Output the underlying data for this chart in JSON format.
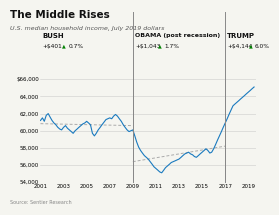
{
  "title": "The Middle Rises",
  "subtitle": "U.S. median household income, July 2019 dollars",
  "source": "Source: Sentier Research",
  "ylim": [
    54000,
    66000
  ],
  "yticks": [
    54000,
    56000,
    58000,
    60000,
    62000,
    64000,
    66000
  ],
  "ytick_labels": [
    "54,000",
    "56,000",
    "58,000",
    "60,000",
    "62,000",
    "64,000",
    "$66,000"
  ],
  "xticks": [
    2001,
    2003,
    2005,
    2007,
    2009,
    2011,
    2013,
    2015,
    2017,
    2019
  ],
  "line_color": "#1a7abf",
  "trend_color": "#aaaaaa",
  "vline_color": "#888888",
  "bg_color": "#f5f5f0",
  "bush_label": "BUSH",
  "bush_stat": "+$401",
  "bush_pct": "0.7%",
  "obama_label": "OBAMA (post recession)",
  "obama_stat": "+$1,043",
  "obama_pct": "1.7%",
  "trump_label": "TRUMP",
  "trump_stat": "+$4,144",
  "trump_pct": "6.0%",
  "bush_vline_x": 2009.0,
  "trump_vline_x": 2017.0,
  "data_x": [
    2001.0,
    2001.17,
    2001.33,
    2001.5,
    2001.67,
    2001.83,
    2002.0,
    2002.17,
    2002.33,
    2002.5,
    2002.67,
    2002.83,
    2003.0,
    2003.17,
    2003.33,
    2003.5,
    2003.67,
    2003.83,
    2004.0,
    2004.17,
    2004.33,
    2004.5,
    2004.67,
    2004.83,
    2005.0,
    2005.17,
    2005.33,
    2005.5,
    2005.67,
    2005.83,
    2006.0,
    2006.17,
    2006.33,
    2006.5,
    2006.67,
    2006.83,
    2007.0,
    2007.17,
    2007.33,
    2007.5,
    2007.67,
    2007.83,
    2008.0,
    2008.17,
    2008.33,
    2008.5,
    2008.67,
    2008.83,
    2009.0,
    2009.17,
    2009.33,
    2009.5,
    2009.67,
    2009.83,
    2010.0,
    2010.17,
    2010.33,
    2010.5,
    2010.67,
    2010.83,
    2011.0,
    2011.17,
    2011.33,
    2011.5,
    2011.67,
    2011.83,
    2012.0,
    2012.17,
    2012.33,
    2012.5,
    2012.67,
    2012.83,
    2013.0,
    2013.17,
    2013.33,
    2013.5,
    2013.67,
    2013.83,
    2014.0,
    2014.17,
    2014.33,
    2014.5,
    2014.67,
    2014.83,
    2015.0,
    2015.17,
    2015.33,
    2015.5,
    2015.67,
    2015.83,
    2016.0,
    2016.17,
    2016.33,
    2016.5,
    2016.67,
    2016.83,
    2017.0,
    2017.17,
    2017.33,
    2017.5,
    2017.67,
    2017.83,
    2018.0,
    2018.17,
    2018.33,
    2018.5,
    2018.67,
    2018.83,
    2019.0,
    2019.17,
    2019.33,
    2019.5
  ],
  "data_y": [
    61200,
    61500,
    61100,
    61800,
    62000,
    61600,
    61200,
    60900,
    60700,
    60400,
    60200,
    60100,
    60400,
    60600,
    60300,
    60100,
    59900,
    59700,
    60000,
    60200,
    60400,
    60600,
    60800,
    60900,
    61100,
    60900,
    60700,
    59700,
    59400,
    59700,
    60100,
    60400,
    60700,
    61000,
    61300,
    61400,
    61500,
    61400,
    61700,
    61900,
    61700,
    61400,
    61100,
    60700,
    60400,
    60100,
    59900,
    60000,
    60100,
    59400,
    58700,
    58100,
    57700,
    57400,
    57100,
    56900,
    56700,
    56400,
    56100,
    55800,
    55600,
    55400,
    55200,
    55100,
    55400,
    55700,
    55900,
    56100,
    56300,
    56400,
    56500,
    56600,
    56700,
    56900,
    57100,
    57300,
    57400,
    57500,
    57300,
    57200,
    57000,
    56900,
    57100,
    57300,
    57500,
    57700,
    57900,
    57700,
    57400,
    57500,
    57900,
    58400,
    58900,
    59400,
    59900,
    60400,
    60900,
    61400,
    61900,
    62400,
    62900,
    63100,
    63300,
    63500,
    63700,
    63900,
    64100,
    64300,
    64500,
    64700,
    64900,
    65100
  ]
}
